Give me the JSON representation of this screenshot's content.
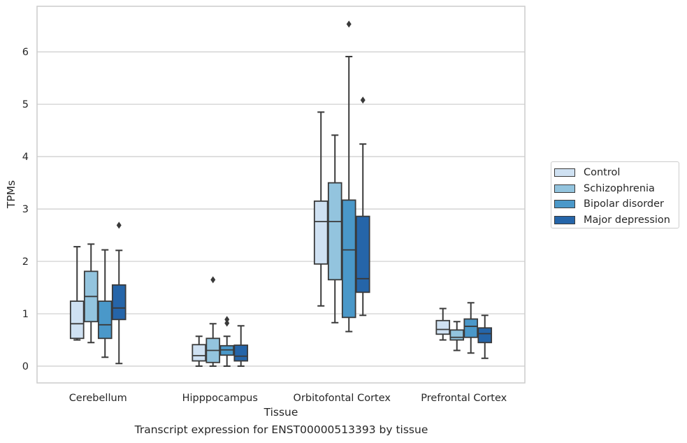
{
  "chart_data": {
    "type": "box",
    "xlabel": "Tissue",
    "ylabel": "TPMs",
    "caption": "Transcript expression for ENST00000513393 by tissue",
    "categories": [
      "Cerebellum",
      "Hipppocampus",
      "Orbitofontal Cortex",
      "Prefrontal Cortex"
    ],
    "ylim": [
      -0.32,
      6.87
    ],
    "yticks": [
      0,
      1,
      2,
      3,
      4,
      5,
      6
    ],
    "grid": "horizontal",
    "legend_placement": "right",
    "series": [
      {
        "name": "Control",
        "color": "#cfe1f2",
        "boxes": [
          {
            "min": 0.5,
            "q1": 0.53,
            "median": 0.81,
            "q3": 1.24,
            "max": 2.28,
            "outliers": []
          },
          {
            "min": 0.0,
            "q1": 0.1,
            "median": 0.2,
            "q3": 0.41,
            "max": 0.57,
            "outliers": []
          },
          {
            "min": 1.15,
            "q1": 1.95,
            "median": 2.76,
            "q3": 3.15,
            "max": 4.85,
            "outliers": []
          },
          {
            "min": 0.5,
            "q1": 0.61,
            "median": 0.7,
            "q3": 0.87,
            "max": 1.1,
            "outliers": []
          }
        ]
      },
      {
        "name": "Schizophrenia",
        "color": "#93c4de",
        "boxes": [
          {
            "min": 0.45,
            "q1": 0.85,
            "median": 1.33,
            "q3": 1.81,
            "max": 2.33,
            "outliers": []
          },
          {
            "min": 0.0,
            "q1": 0.07,
            "median": 0.3,
            "q3": 0.53,
            "max": 0.81,
            "outliers": [
              1.65
            ]
          },
          {
            "min": 0.83,
            "q1": 1.65,
            "median": 2.76,
            "q3": 3.5,
            "max": 4.41,
            "outliers": []
          },
          {
            "min": 0.3,
            "q1": 0.5,
            "median": 0.55,
            "q3": 0.69,
            "max": 0.85,
            "outliers": []
          }
        ]
      },
      {
        "name": "Bipolar disorder",
        "color": "#4a98c9",
        "boxes": [
          {
            "min": 0.17,
            "q1": 0.53,
            "median": 0.79,
            "q3": 1.24,
            "max": 2.22,
            "outliers": []
          },
          {
            "min": 0.0,
            "q1": 0.21,
            "median": 0.31,
            "q3": 0.39,
            "max": 0.57,
            "outliers": [
              0.82,
              0.89
            ]
          },
          {
            "min": 0.66,
            "q1": 0.93,
            "median": 2.22,
            "q3": 3.17,
            "max": 5.91,
            "outliers": [
              6.53
            ]
          },
          {
            "min": 0.25,
            "q1": 0.55,
            "median": 0.76,
            "q3": 0.9,
            "max": 1.21,
            "outliers": []
          }
        ]
      },
      {
        "name": "Major depression",
        "color": "#2565a9",
        "boxes": [
          {
            "min": 0.05,
            "q1": 0.89,
            "median": 1.11,
            "q3": 1.55,
            "max": 2.21,
            "outliers": [
              2.69
            ]
          },
          {
            "min": 0.0,
            "q1": 0.1,
            "median": 0.19,
            "q3": 0.4,
            "max": 0.77,
            "outliers": []
          },
          {
            "min": 0.97,
            "q1": 1.41,
            "median": 1.67,
            "q3": 2.86,
            "max": 4.24,
            "outliers": [
              5.08
            ]
          },
          {
            "min": 0.15,
            "q1": 0.45,
            "median": 0.62,
            "q3": 0.73,
            "max": 0.97,
            "outliers": []
          }
        ]
      }
    ]
  }
}
